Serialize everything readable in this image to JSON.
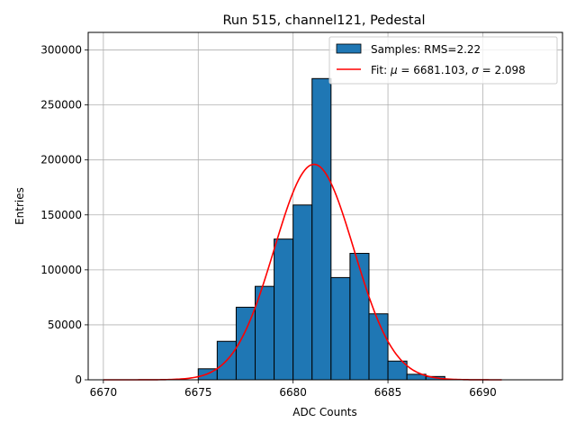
{
  "chart_data": {
    "type": "bar",
    "title": "Run 515, channel121, Pedestal",
    "xlabel": "ADC Counts",
    "ylabel": "Entries",
    "xlim": [
      6669.2,
      6694.2
    ],
    "ylim": [
      0,
      316000
    ],
    "xticks": [
      6670,
      6675,
      6680,
      6685,
      6690
    ],
    "yticks": [
      0,
      50000,
      100000,
      150000,
      200000,
      250000,
      300000
    ],
    "grid": true,
    "legend_position": "top-right",
    "bar_color": "#1f77b4",
    "fit_color": "#ff0000",
    "bins": [
      {
        "x0": 6675,
        "x1": 6676,
        "value": 10000
      },
      {
        "x0": 6676,
        "x1": 6677,
        "value": 35000
      },
      {
        "x0": 6677,
        "x1": 6678,
        "value": 66000
      },
      {
        "x0": 6678,
        "x1": 6679,
        "value": 85000
      },
      {
        "x0": 6679,
        "x1": 6680,
        "value": 128000
      },
      {
        "x0": 6680,
        "x1": 6681,
        "value": 159000
      },
      {
        "x0": 6681,
        "x1": 6682,
        "value": 274000
      },
      {
        "x0": 6682,
        "x1": 6683,
        "value": 93000
      },
      {
        "x0": 6683,
        "x1": 6684,
        "value": 115000
      },
      {
        "x0": 6684,
        "x1": 6685,
        "value": 60000
      },
      {
        "x0": 6685,
        "x1": 6686,
        "value": 17000
      },
      {
        "x0": 6686,
        "x1": 6687,
        "value": 5000
      },
      {
        "x0": 6687,
        "x1": 6688,
        "value": 3000
      }
    ],
    "fit": {
      "mu": 6681.103,
      "sigma": 2.098,
      "amplitude": 196000,
      "x_range": [
        6670,
        6691
      ]
    },
    "legend": [
      {
        "kind": "bar",
        "label": "Samples: RMS=2.22"
      },
      {
        "kind": "line",
        "label_prefix": "Fit: ",
        "mu_symbol": "μ",
        "mu_text": " = 6681.103, ",
        "sigma_symbol": "σ",
        "sigma_text": " = 2.098"
      }
    ]
  }
}
